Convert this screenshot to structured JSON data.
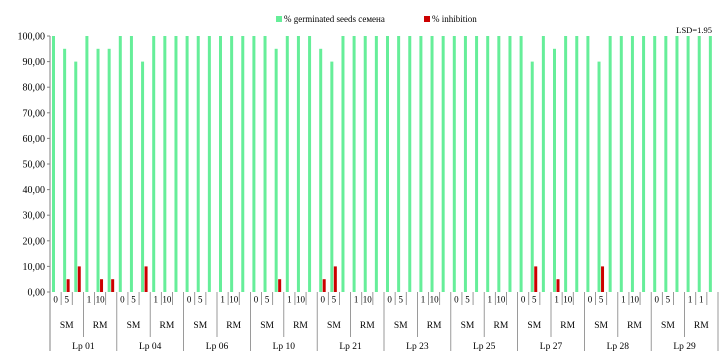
{
  "chart_data": {
    "type": "bar",
    "annotation": "LSD=1.95",
    "ylim": [
      0,
      100
    ],
    "yticks": [
      "0,00",
      "10,00",
      "20,00",
      "30,00",
      "40,00",
      "50,00",
      "60,00",
      "70,00",
      "80,00",
      "90,00",
      "100,00"
    ],
    "grid": false,
    "legend_position": "top-center",
    "colors": {
      "germinated": "#66ee99",
      "inhibition": "#cc0000",
      "axis": "#808080",
      "table_line": "#808080"
    },
    "series": [
      {
        "name": "% germinated seeds семена",
        "key": "germinated"
      },
      {
        "name": "% inhibition",
        "key": "inhibition"
      }
    ],
    "samples": [
      {
        "label": "Lp 01",
        "groups": [
          {
            "label": "SM",
            "categories": [
              {
                "label": "0",
                "values": [
                  100,
                  0
                ]
              },
              {
                "label": "5",
                "values": [
                  95,
                  5
                ]
              },
              {
                "label": "",
                "values": [
                  90,
                  10
                ]
              }
            ]
          },
          {
            "label": "RM",
            "categories": [
              {
                "label": "1",
                "values": [
                  100,
                  0
                ]
              },
              {
                "label": "10",
                "values": [
                  95,
                  5
                ]
              },
              {
                "label": "",
                "values": [
                  95,
                  5
                ]
              }
            ]
          }
        ]
      },
      {
        "label": "Lp 04",
        "groups": [
          {
            "label": "SM",
            "categories": [
              {
                "label": "0",
                "values": [
                  100,
                  0
                ]
              },
              {
                "label": "5",
                "values": [
                  100,
                  0
                ]
              },
              {
                "label": "",
                "values": [
                  90,
                  10
                ]
              }
            ]
          },
          {
            "label": "RM",
            "categories": [
              {
                "label": "1",
                "values": [
                  100,
                  0
                ]
              },
              {
                "label": "10",
                "values": [
                  100,
                  0
                ]
              },
              {
                "label": "",
                "values": [
                  100,
                  0
                ]
              }
            ]
          }
        ]
      },
      {
        "label": "Lp 06",
        "groups": [
          {
            "label": "SM",
            "categories": [
              {
                "label": "0",
                "values": [
                  100,
                  0
                ]
              },
              {
                "label": "5",
                "values": [
                  100,
                  0
                ]
              },
              {
                "label": "",
                "values": [
                  100,
                  0
                ]
              }
            ]
          },
          {
            "label": "RM",
            "categories": [
              {
                "label": "1",
                "values": [
                  100,
                  0
                ]
              },
              {
                "label": "10",
                "values": [
                  100,
                  0
                ]
              },
              {
                "label": "",
                "values": [
                  100,
                  0
                ]
              }
            ]
          }
        ]
      },
      {
        "label": "Lp 10",
        "groups": [
          {
            "label": "SM",
            "categories": [
              {
                "label": "0",
                "values": [
                  100,
                  0
                ]
              },
              {
                "label": "5",
                "values": [
                  100,
                  0
                ]
              },
              {
                "label": "",
                "values": [
                  95,
                  5
                ]
              }
            ]
          },
          {
            "label": "RM",
            "categories": [
              {
                "label": "1",
                "values": [
                  100,
                  0
                ]
              },
              {
                "label": "10",
                "values": [
                  100,
                  0
                ]
              },
              {
                "label": "",
                "values": [
                  100,
                  0
                ]
              }
            ]
          }
        ]
      },
      {
        "label": "Lp 21",
        "groups": [
          {
            "label": "SM",
            "categories": [
              {
                "label": "0",
                "values": [
                  95,
                  5
                ]
              },
              {
                "label": "5",
                "values": [
                  90,
                  10
                ]
              },
              {
                "label": "",
                "values": [
                  100,
                  0
                ]
              }
            ]
          },
          {
            "label": "RM",
            "categories": [
              {
                "label": "1",
                "values": [
                  100,
                  0
                ]
              },
              {
                "label": "10",
                "values": [
                  100,
                  0
                ]
              },
              {
                "label": "",
                "values": [
                  100,
                  0
                ]
              }
            ]
          }
        ]
      },
      {
        "label": "Lp 23",
        "groups": [
          {
            "label": "SM",
            "categories": [
              {
                "label": "0",
                "values": [
                  100,
                  0
                ]
              },
              {
                "label": "5",
                "values": [
                  100,
                  0
                ]
              },
              {
                "label": "",
                "values": [
                  100,
                  0
                ]
              }
            ]
          },
          {
            "label": "RM",
            "categories": [
              {
                "label": "1",
                "values": [
                  100,
                  0
                ]
              },
              {
                "label": "10",
                "values": [
                  100,
                  0
                ]
              },
              {
                "label": "",
                "values": [
                  100,
                  0
                ]
              }
            ]
          }
        ]
      },
      {
        "label": "Lp 25",
        "groups": [
          {
            "label": "SM",
            "categories": [
              {
                "label": "0",
                "values": [
                  100,
                  0
                ]
              },
              {
                "label": "5",
                "values": [
                  100,
                  0
                ]
              },
              {
                "label": "",
                "values": [
                  100,
                  0
                ]
              }
            ]
          },
          {
            "label": "RM",
            "categories": [
              {
                "label": "1",
                "values": [
                  100,
                  0
                ]
              },
              {
                "label": "10",
                "values": [
                  100,
                  0
                ]
              },
              {
                "label": "",
                "values": [
                  100,
                  0
                ]
              }
            ]
          }
        ]
      },
      {
        "label": "Lp 27",
        "groups": [
          {
            "label": "SM",
            "categories": [
              {
                "label": "0",
                "values": [
                  100,
                  0
                ]
              },
              {
                "label": "5",
                "values": [
                  90,
                  10
                ]
              },
              {
                "label": "",
                "values": [
                  100,
                  0
                ]
              }
            ]
          },
          {
            "label": "RM",
            "categories": [
              {
                "label": "1",
                "values": [
                  95,
                  5
                ]
              },
              {
                "label": "10",
                "values": [
                  100,
                  0
                ]
              },
              {
                "label": "",
                "values": [
                  100,
                  0
                ]
              }
            ]
          }
        ]
      },
      {
        "label": "Lp 28",
        "groups": [
          {
            "label": "SM",
            "categories": [
              {
                "label": "0",
                "values": [
                  100,
                  0
                ]
              },
              {
                "label": "5",
                "values": [
                  90,
                  10
                ]
              },
              {
                "label": "",
                "values": [
                  100,
                  0
                ]
              }
            ]
          },
          {
            "label": "RM",
            "categories": [
              {
                "label": "1",
                "values": [
                  100,
                  0
                ]
              },
              {
                "label": "10",
                "values": [
                  100,
                  0
                ]
              },
              {
                "label": "",
                "values": [
                  100,
                  0
                ]
              }
            ]
          }
        ]
      },
      {
        "label": "Lp 29",
        "groups": [
          {
            "label": "SM",
            "categories": [
              {
                "label": "0",
                "values": [
                  100,
                  0
                ]
              },
              {
                "label": "5",
                "values": [
                  100,
                  0
                ]
              },
              {
                "label": "",
                "values": [
                  100,
                  0
                ]
              }
            ]
          },
          {
            "label": "RM",
            "categories": [
              {
                "label": "1",
                "values": [
                  100,
                  0
                ]
              },
              {
                "label": "1",
                "values": [
                  100,
                  0
                ]
              },
              {
                "label": "",
                "values": [
                  100,
                  0
                ]
              }
            ]
          }
        ]
      }
    ]
  }
}
